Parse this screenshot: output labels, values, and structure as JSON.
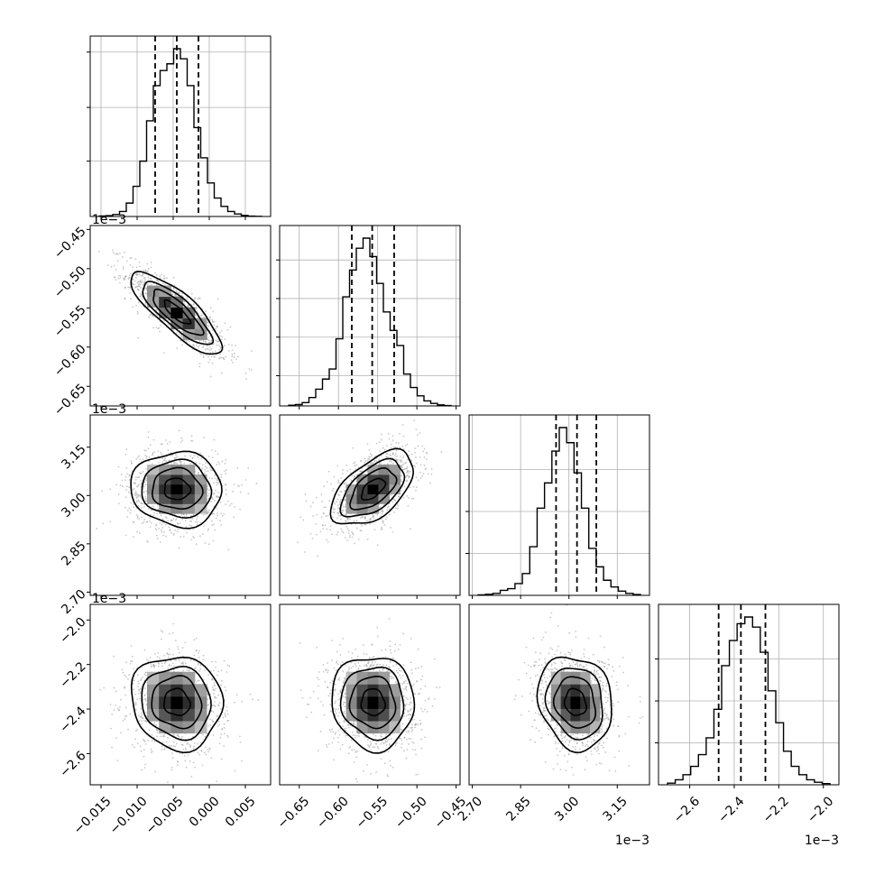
{
  "chart_data": {
    "type": "corner",
    "n_params": 4,
    "colors": {
      "line": "#000000",
      "grid": "#b0b0b0",
      "scatter": "#9a9a9a",
      "background": "#ffffff"
    },
    "params": [
      {
        "range": [
          -0.0165,
          0.0085
        ],
        "ticks": [
          -0.015,
          -0.01,
          -0.005,
          0.0,
          0.005
        ],
        "tick_labels": [
          "−0.015",
          "−0.010",
          "−0.005",
          "0.000",
          "0.005"
        ],
        "multiplier": "",
        "quantiles": [
          -0.0075,
          -0.0045,
          -0.0015
        ],
        "center": -0.0045,
        "sigma": 0.003,
        "hist_bins": [
          0.003,
          0.005,
          0.012,
          0.03,
          0.08,
          0.18,
          0.33,
          0.57,
          0.78,
          0.87,
          0.91,
          1.0,
          0.94,
          0.78,
          0.53,
          0.35,
          0.2,
          0.11,
          0.06,
          0.03,
          0.015,
          0.006,
          0.002,
          0.001
        ],
        "hist_ticks": [
          0.33,
          0.65,
          0.98
        ]
      },
      {
        "range": [
          -0.675,
          -0.445
        ],
        "ticks": [
          -0.65,
          -0.6,
          -0.55,
          -0.5,
          -0.45
        ],
        "tick_labels": [
          "−0.65",
          "−0.60",
          "−0.55",
          "−0.50",
          "−0.45"
        ],
        "multiplier": "1e−3",
        "quantiles": [
          -0.583,
          -0.557,
          -0.529
        ],
        "center": -0.556,
        "sigma": 0.025,
        "hist_bins": [
          0.004,
          0.008,
          0.02,
          0.05,
          0.1,
          0.16,
          0.22,
          0.4,
          0.65,
          0.81,
          0.94,
          1.0,
          0.89,
          0.73,
          0.56,
          0.45,
          0.36,
          0.19,
          0.11,
          0.06,
          0.03,
          0.015,
          0.006,
          0.002
        ],
        "hist_ticks": [
          0.18,
          0.41,
          0.64,
          0.87
        ]
      },
      {
        "range": [
          2.69,
          3.25
        ],
        "ticks": [
          2.7,
          2.85,
          3.0,
          3.15
        ],
        "tick_labels": [
          "2.70",
          "2.85",
          "3.00",
          "3.15"
        ],
        "multiplier": "1e−3",
        "quantiles": [
          2.96,
          3.025,
          3.085
        ],
        "center": 3.02,
        "sigma": 0.055,
        "hist_bins": [
          0.003,
          0.006,
          0.012,
          0.03,
          0.04,
          0.07,
          0.13,
          0.29,
          0.52,
          0.67,
          0.86,
          1.0,
          0.91,
          0.73,
          0.52,
          0.28,
          0.17,
          0.09,
          0.05,
          0.025,
          0.012,
          0.005
        ],
        "hist_ticks": [
          0.25,
          0.5,
          0.75
        ]
      },
      {
        "range": [
          -2.74,
          -1.93
        ],
        "ticks": [
          -2.6,
          -2.4,
          -2.2,
          -2.0
        ],
        "tick_labels": [
          "−2.6",
          "−2.4",
          "−2.2",
          "−2.0"
        ],
        "multiplier": "1e−3",
        "quantiles": [
          -2.47,
          -2.37,
          -2.26
        ],
        "center": -2.37,
        "sigma": 0.1,
        "hist_bins": [
          0.01,
          0.03,
          0.06,
          0.11,
          0.18,
          0.28,
          0.45,
          0.71,
          0.86,
          0.96,
          1.0,
          0.94,
          0.79,
          0.56,
          0.37,
          0.2,
          0.11,
          0.06,
          0.03,
          0.015,
          0.007
        ],
        "hist_ticks": [
          0.25,
          0.5,
          0.75
        ]
      }
    ],
    "pairs": [
      {
        "row": 1,
        "col": 0,
        "rho": -0.82
      },
      {
        "row": 2,
        "col": 0,
        "rho": -0.05
      },
      {
        "row": 2,
        "col": 1,
        "rho": 0.55
      },
      {
        "row": 3,
        "col": 0,
        "rho": -0.08
      },
      {
        "row": 3,
        "col": 1,
        "rho": -0.05
      },
      {
        "row": 3,
        "col": 2,
        "rho": -0.15
      }
    ],
    "bottom_multipliers": [
      "",
      "",
      "1e−3",
      "1e−3"
    ]
  }
}
